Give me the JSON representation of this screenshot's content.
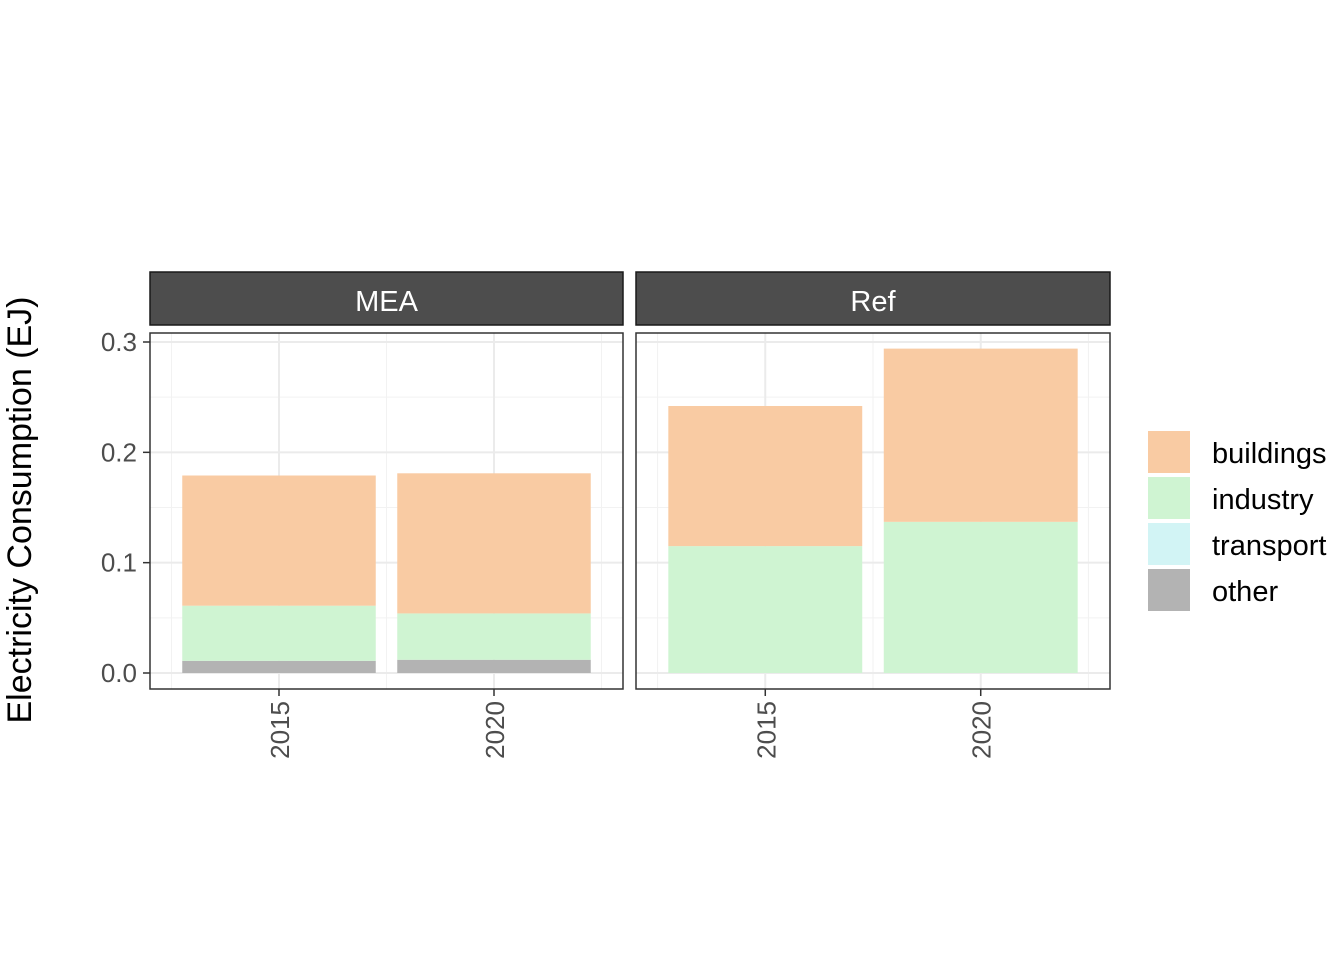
{
  "chart_data": {
    "type": "bar",
    "stacked": true,
    "facets": [
      "MEA",
      "Ref"
    ],
    "categories": [
      "2015",
      "2020"
    ],
    "ylabel": "Electricity Consumption (EJ)",
    "xlabel": "",
    "ylim": [
      0,
      0.3
    ],
    "y_ticks": [
      "0.0",
      "0.1",
      "0.2",
      "0.3"
    ],
    "grid": true,
    "legend_position": "right",
    "series": [
      {
        "name": "buildings",
        "color": "#F9CBA3",
        "values": {
          "MEA": [
            0.118,
            0.127
          ],
          "Ref": [
            0.127,
            0.157
          ]
        }
      },
      {
        "name": "industry",
        "color": "#CFF4D2",
        "values": {
          "MEA": [
            0.05,
            0.042
          ],
          "Ref": [
            0.115,
            0.137
          ]
        }
      },
      {
        "name": "transport",
        "color": "#D2F4F5",
        "values": {
          "MEA": [
            0.0,
            0.0
          ],
          "Ref": [
            0.0,
            0.0
          ]
        }
      },
      {
        "name": "other",
        "color": "#B3B3B3",
        "values": {
          "MEA": [
            0.011,
            0.012
          ],
          "Ref": [
            0.0,
            0.0
          ]
        }
      }
    ]
  }
}
